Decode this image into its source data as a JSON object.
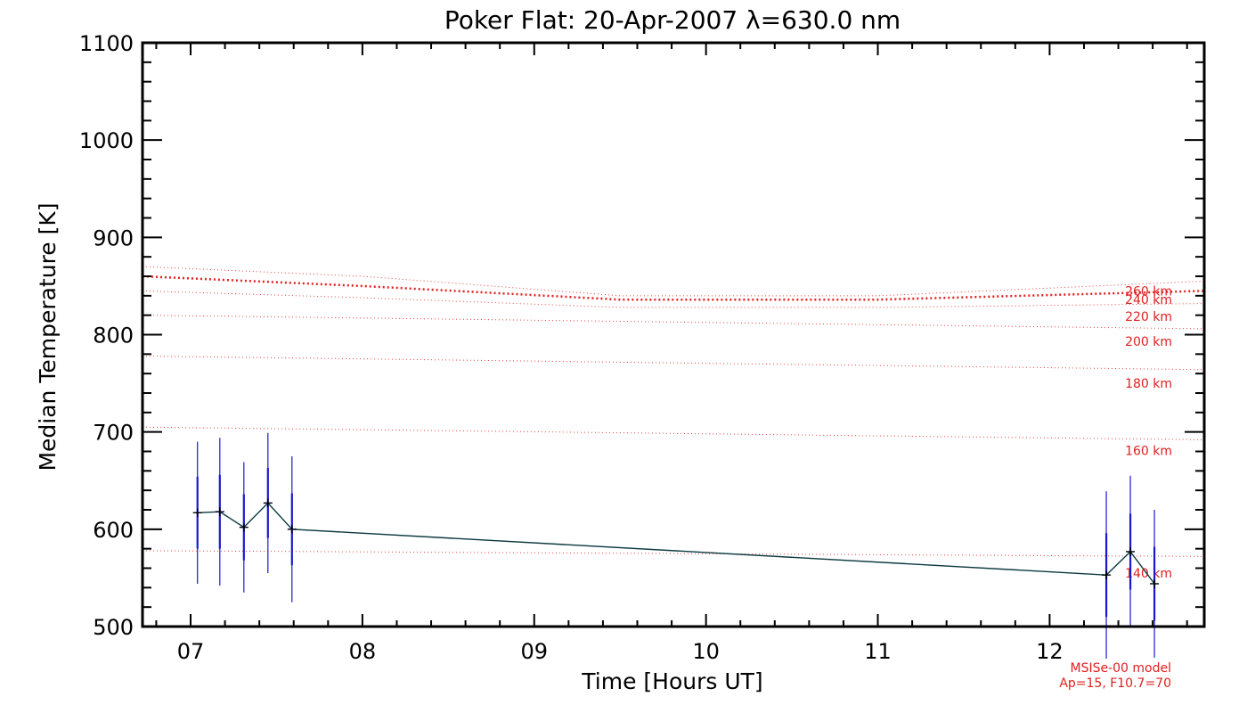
{
  "chart_data": {
    "type": "line",
    "title": "Poker Flat: 20-Apr-2007 λ=630.0 nm",
    "xlabel": "Time [Hours UT]",
    "ylabel": "Median Temperature [K]",
    "xlim": [
      6.72,
      12.9
    ],
    "ylim": [
      500,
      1100
    ],
    "xticks": [
      7,
      8,
      9,
      10,
      11,
      12
    ],
    "xtick_labels": [
      "07",
      "08",
      "09",
      "10",
      "11",
      "12"
    ],
    "yticks": [
      500,
      600,
      700,
      800,
      900,
      1000,
      1100
    ],
    "ytick_labels": [
      "500",
      "600",
      "700",
      "800",
      "900",
      "1000",
      "1100"
    ],
    "colors": {
      "data_line": "#0b3a40",
      "error_bar": "#1a1acc",
      "model": "#e02020",
      "axis": "#000000"
    },
    "series": [
      {
        "name": "Median temperature",
        "points": [
          {
            "x": 7.04,
            "y": 617,
            "err_inner": 37,
            "err_outer": 73
          },
          {
            "x": 7.17,
            "y": 618,
            "err_inner": 38,
            "err_outer": 76
          },
          {
            "x": 7.31,
            "y": 602,
            "err_inner": 34,
            "err_outer": 67
          },
          {
            "x": 7.45,
            "y": 627,
            "err_inner": 36,
            "err_outer": 72
          },
          {
            "x": 7.59,
            "y": 600,
            "err_inner": 37,
            "err_outer": 75
          },
          {
            "x": 12.33,
            "y": 553,
            "err_inner": 43,
            "err_outer": 86
          },
          {
            "x": 12.47,
            "y": 577,
            "err_inner": 39,
            "err_outer": 78
          },
          {
            "x": 12.61,
            "y": 544,
            "err_inner": 38,
            "err_outer": 76
          }
        ]
      }
    ],
    "model_curves": [
      {
        "label": "260 km",
        "x": [
          6.72,
          8.0,
          9.5,
          11.0,
          12.9
        ],
        "y": [
          870,
          860,
          840,
          840,
          855
        ]
      },
      {
        "label": "240 km",
        "x": [
          6.72,
          8.0,
          9.5,
          11.0,
          12.9
        ],
        "y": [
          860,
          850,
          836,
          836,
          845
        ],
        "emphasized": true
      },
      {
        "label": "220 km",
        "x": [
          6.72,
          8.0,
          9.5,
          11.0,
          12.9
        ],
        "y": [
          845,
          838,
          828,
          828,
          832
        ]
      },
      {
        "label": "200 km",
        "x": [
          6.72,
          12.9
        ],
        "y": [
          820,
          806
        ]
      },
      {
        "label": "180 km",
        "x": [
          6.72,
          12.9
        ],
        "y": [
          778,
          764
        ]
      },
      {
        "label": "160 km",
        "x": [
          6.72,
          12.9
        ],
        "y": [
          705,
          692
        ]
      },
      {
        "label": "140 km",
        "x": [
          6.72,
          12.9
        ],
        "y": [
          578,
          572
        ]
      }
    ],
    "model_label_y": {
      "260 km": 845,
      "240 km": 836,
      "220 km": 819,
      "200 km": 793,
      "180 km": 750,
      "160 km": 681,
      "140 km": 555
    },
    "annotations": [
      "MSISe-00 model",
      "Ap=15, F10.7=70"
    ]
  }
}
